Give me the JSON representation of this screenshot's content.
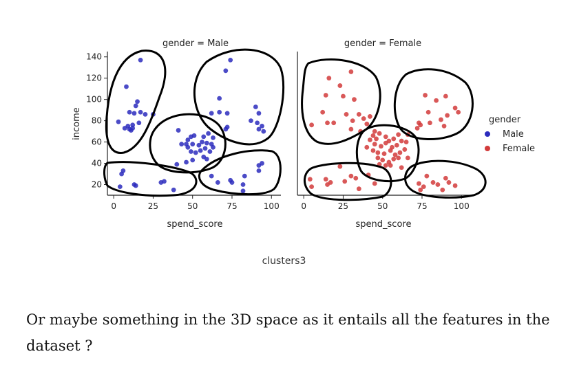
{
  "chart_data": {
    "type": "scatter",
    "x_label": "spend_score",
    "y_label": "income",
    "x_ticks": [
      0,
      25,
      50,
      75,
      100
    ],
    "y_ticks": [
      20,
      40,
      60,
      80,
      100,
      120,
      140
    ],
    "xlim": [
      -4,
      106
    ],
    "ylim": [
      10,
      145
    ],
    "legend": {
      "title": "gender",
      "placement": "right",
      "entries": [
        {
          "label": "Male",
          "color": "#2b2bbd"
        },
        {
          "label": "Female",
          "color": "#d23b3b"
        }
      ]
    },
    "panels": [
      {
        "title": "gender = Male",
        "series": "Male",
        "color": "#2b2bbd",
        "points": [
          [
            17,
            137
          ],
          [
            8,
            112
          ],
          [
            15,
            98
          ],
          [
            14,
            94
          ],
          [
            10,
            88
          ],
          [
            13,
            87
          ],
          [
            17,
            88
          ],
          [
            20,
            86
          ],
          [
            25,
            86
          ],
          [
            3,
            79
          ],
          [
            7,
            73
          ],
          [
            10,
            72
          ],
          [
            9,
            75
          ],
          [
            12,
            76
          ],
          [
            16,
            78
          ],
          [
            11,
            71
          ],
          [
            12,
            73
          ],
          [
            74,
            137
          ],
          [
            71,
            127
          ],
          [
            67,
            101
          ],
          [
            62,
            87
          ],
          [
            67,
            88
          ],
          [
            72,
            87
          ],
          [
            72,
            74
          ],
          [
            71,
            72
          ],
          [
            90,
            93
          ],
          [
            92,
            87
          ],
          [
            87,
            80
          ],
          [
            91,
            78
          ],
          [
            94,
            75
          ],
          [
            92,
            72
          ],
          [
            95,
            70
          ],
          [
            41,
            71
          ],
          [
            47,
            62
          ],
          [
            49,
            65
          ],
          [
            51,
            66
          ],
          [
            57,
            65
          ],
          [
            60,
            68
          ],
          [
            63,
            64
          ],
          [
            43,
            58
          ],
          [
            46,
            58
          ],
          [
            50,
            58
          ],
          [
            54,
            57
          ],
          [
            56,
            60
          ],
          [
            59,
            59
          ],
          [
            62,
            58
          ],
          [
            47,
            55
          ],
          [
            49,
            51
          ],
          [
            52,
            50
          ],
          [
            55,
            52
          ],
          [
            58,
            54
          ],
          [
            61,
            51
          ],
          [
            63,
            55
          ],
          [
            57,
            46
          ],
          [
            59,
            44
          ],
          [
            50,
            43
          ],
          [
            46,
            41
          ],
          [
            40,
            39
          ],
          [
            5,
            30
          ],
          [
            6,
            33
          ],
          [
            4,
            18
          ],
          [
            13,
            20
          ],
          [
            14,
            19
          ],
          [
            30,
            22
          ],
          [
            32,
            23
          ],
          [
            38,
            15
          ],
          [
            62,
            28
          ],
          [
            66,
            22
          ],
          [
            74,
            24
          ],
          [
            75,
            22
          ],
          [
            83,
            28
          ],
          [
            82,
            20
          ],
          [
            82,
            14
          ],
          [
            92,
            38
          ],
          [
            92,
            33
          ],
          [
            94,
            40
          ]
        ]
      },
      {
        "title": "gender = Female",
        "series": "Female",
        "color": "#d23b3b",
        "points": [
          [
            16,
            120
          ],
          [
            30,
            126
          ],
          [
            23,
            113
          ],
          [
            14,
            104
          ],
          [
            25,
            103
          ],
          [
            32,
            100
          ],
          [
            5,
            76
          ],
          [
            12,
            88
          ],
          [
            15,
            78
          ],
          [
            19,
            78
          ],
          [
            27,
            86
          ],
          [
            31,
            80
          ],
          [
            35,
            86
          ],
          [
            38,
            82
          ],
          [
            40,
            77
          ],
          [
            42,
            84
          ],
          [
            45,
            70
          ],
          [
            36,
            70
          ],
          [
            30,
            72
          ],
          [
            77,
            104
          ],
          [
            84,
            99
          ],
          [
            90,
            103
          ],
          [
            96,
            92
          ],
          [
            98,
            88
          ],
          [
            91,
            85
          ],
          [
            87,
            81
          ],
          [
            80,
            78
          ],
          [
            74,
            76
          ],
          [
            73,
            78
          ],
          [
            72,
            73
          ],
          [
            89,
            75
          ],
          [
            79,
            88
          ],
          [
            44,
            66
          ],
          [
            46,
            63
          ],
          [
            48,
            68
          ],
          [
            52,
            65
          ],
          [
            54,
            61
          ],
          [
            57,
            63
          ],
          [
            60,
            67
          ],
          [
            45,
            58
          ],
          [
            49,
            56
          ],
          [
            52,
            59
          ],
          [
            56,
            55
          ],
          [
            59,
            57
          ],
          [
            62,
            61
          ],
          [
            44,
            52
          ],
          [
            47,
            50
          ],
          [
            51,
            49
          ],
          [
            55,
            52
          ],
          [
            58,
            48
          ],
          [
            61,
            50
          ],
          [
            64,
            53
          ],
          [
            47,
            45
          ],
          [
            50,
            43
          ],
          [
            54,
            41
          ],
          [
            57,
            44
          ],
          [
            60,
            45
          ],
          [
            48,
            39
          ],
          [
            52,
            38
          ],
          [
            55,
            38
          ],
          [
            62,
            36
          ],
          [
            66,
            45
          ],
          [
            42,
            62
          ],
          [
            40,
            55
          ],
          [
            65,
            60
          ],
          [
            66,
            67
          ],
          [
            4,
            25
          ],
          [
            5,
            18
          ],
          [
            14,
            25
          ],
          [
            17,
            22
          ],
          [
            23,
            37
          ],
          [
            26,
            23
          ],
          [
            33,
            26
          ],
          [
            35,
            16
          ],
          [
            41,
            29
          ],
          [
            30,
            28
          ],
          [
            15,
            20
          ],
          [
            45,
            21
          ],
          [
            73,
            21
          ],
          [
            76,
            18
          ],
          [
            74,
            15
          ],
          [
            78,
            28
          ],
          [
            82,
            22
          ],
          [
            85,
            20
          ],
          [
            90,
            26
          ],
          [
            92,
            22
          ],
          [
            96,
            19
          ],
          [
            88,
            15
          ]
        ]
      }
    ]
  },
  "caption": "clusters3",
  "paragraph": "Or maybe something in the 3D space as it entails all the features in the dataset ?"
}
